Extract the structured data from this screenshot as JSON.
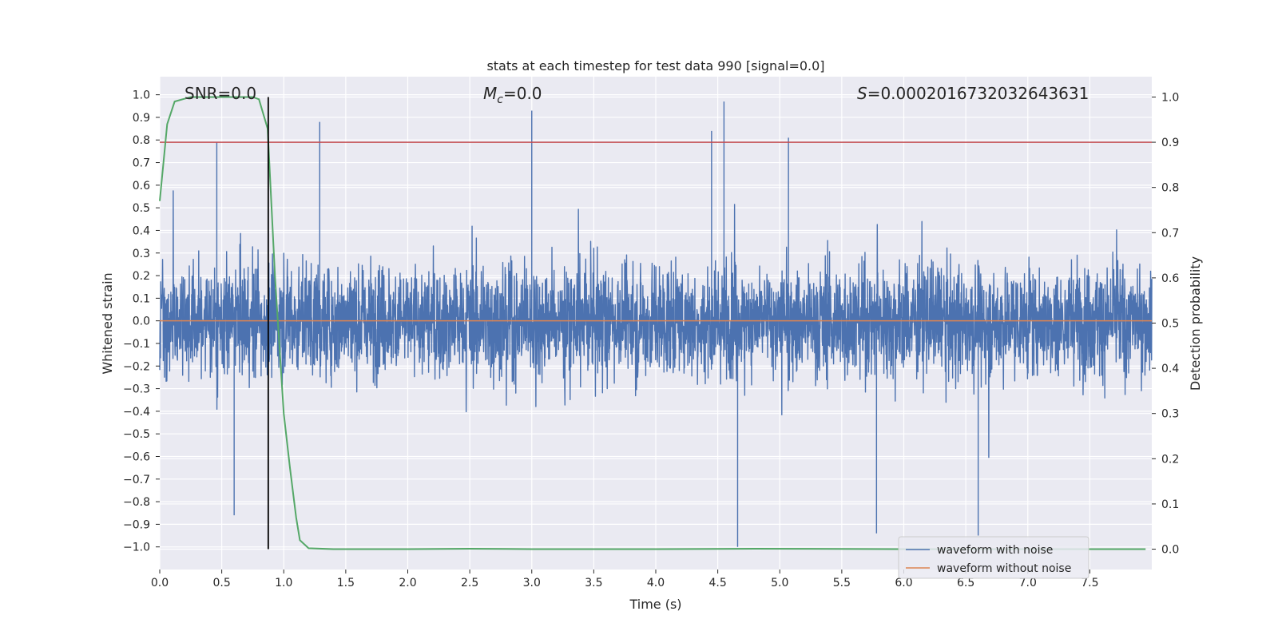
{
  "chart_data": {
    "type": "line",
    "title": "stats at each timestep for test data 990 [signal=0.0]",
    "xlabel": "Time (s)",
    "ylabel_left": "Whitened strain",
    "ylabel_right": "Detection probability",
    "xlim": [
      0,
      8.0
    ],
    "ylim_left": [
      -1.1,
      1.08
    ],
    "ylim_right": [
      -0.045,
      1.045
    ],
    "x_ticks": [
      "0.0",
      "0.5",
      "1.0",
      "1.5",
      "2.0",
      "2.5",
      "3.0",
      "3.5",
      "4.0",
      "4.5",
      "5.0",
      "5.5",
      "6.0",
      "6.5",
      "7.0",
      "7.5"
    ],
    "y_ticks_left": [
      "1.0",
      "0.9",
      "0.8",
      "0.7",
      "0.6",
      "0.5",
      "0.4",
      "0.3",
      "0.2",
      "0.1",
      "0.0",
      "-0.1",
      "-0.2",
      "-0.3",
      "-0.4",
      "-0.5",
      "-0.6",
      "-0.7",
      "-0.8",
      "-0.9",
      "-1.0"
    ],
    "y_ticks_right": [
      "1.0",
      "0.9",
      "0.8",
      "0.7",
      "0.6",
      "0.5",
      "0.4",
      "0.3",
      "0.2",
      "0.1",
      "0.0"
    ],
    "grid": true,
    "annotations": {
      "snr": "SNR=0.0",
      "mc_symbol": "M",
      "mc_subscript": "c",
      "mc_value": "=0.0",
      "s_symbol": "S",
      "s_value": "=0.0002016732032643631"
    },
    "threshold_right": 0.9,
    "vline_x": 0.875,
    "legend": {
      "placement": "lower-right",
      "entries": [
        "waveform with noise",
        "waveform without noise"
      ]
    },
    "series": [
      {
        "name": "waveform with noise",
        "axis": "left",
        "color": "#4c72b0",
        "description_samples": "dense noise, typical envelope about ±0.45",
        "notable_peaks": [
          {
            "x": 0.46,
            "y": 0.79
          },
          {
            "x": 1.29,
            "y": 0.88
          },
          {
            "x": 3.0,
            "y": 0.93
          },
          {
            "x": 4.45,
            "y": 0.84
          },
          {
            "x": 4.55,
            "y": 0.97
          },
          {
            "x": 5.07,
            "y": 0.81
          },
          {
            "x": 4.66,
            "y": -1.0
          },
          {
            "x": 6.6,
            "y": -0.95
          },
          {
            "x": 5.78,
            "y": -0.94
          },
          {
            "x": 0.6,
            "y": -0.86
          }
        ]
      },
      {
        "name": "waveform without noise",
        "axis": "left",
        "color": "#dd8452",
        "x": [
          0,
          8.0
        ],
        "y": [
          0.0,
          0.0
        ]
      },
      {
        "name": "detection probability",
        "axis": "right",
        "color": "#55a868",
        "x": [
          0.0,
          0.06,
          0.12,
          0.25,
          0.5,
          0.75,
          0.8,
          0.87,
          0.93,
          1.0,
          1.05,
          1.1,
          1.13,
          1.2,
          1.4,
          2.0,
          2.5,
          3.0,
          4.0,
          4.8,
          6.0,
          7.0,
          7.95
        ],
        "y": [
          0.77,
          0.94,
          0.99,
          1.0,
          1.0,
          1.0,
          0.995,
          0.93,
          0.6,
          0.3,
          0.18,
          0.07,
          0.02,
          0.002,
          0.0,
          0.0,
          0.001,
          0.0,
          0.0,
          0.001,
          0.0,
          0.0,
          0.0
        ]
      }
    ],
    "colors": {
      "plot_bg": "#eaeaf2",
      "grid": "#ffffff",
      "noise": "#4c72b0",
      "clean": "#dd8452",
      "prob": "#55a868",
      "threshold": "#c44e52",
      "vline": "#000000"
    }
  }
}
